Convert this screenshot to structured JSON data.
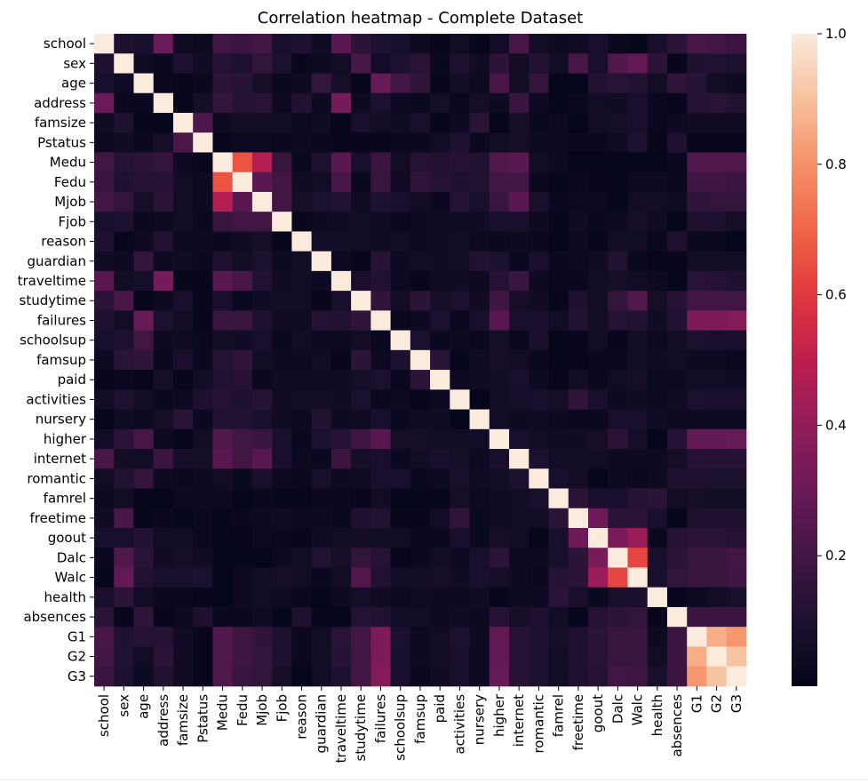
{
  "chart_data": {
    "type": "heatmap",
    "title": "Correlation heatmap - Complete Dataset",
    "xlabel": "",
    "ylabel": "",
    "labels": [
      "school",
      "sex",
      "age",
      "address",
      "famsize",
      "Pstatus",
      "Medu",
      "Fedu",
      "Mjob",
      "Fjob",
      "reason",
      "guardian",
      "traveltime",
      "studytime",
      "failures",
      "schoolsup",
      "famsup",
      "paid",
      "activities",
      "nursery",
      "higher",
      "internet",
      "romantic",
      "famrel",
      "freetime",
      "goout",
      "Dalc",
      "Walc",
      "health",
      "absences",
      "G1",
      "G2",
      "G3"
    ],
    "colorbar": {
      "ticks": [
        "0.2",
        "0.4",
        "0.6",
        "0.8",
        "1.0"
      ],
      "tick_values": [
        0.2,
        0.4,
        0.6,
        0.8,
        1.0
      ],
      "min": 0.0,
      "max": 1.0
    },
    "colormap": "rocket",
    "values": [
      [
        1.0,
        0.1,
        0.08,
        0.3,
        0.05,
        0.04,
        0.2,
        0.18,
        0.2,
        0.08,
        0.1,
        0.05,
        0.26,
        0.14,
        0.1,
        0.08,
        0.04,
        0.02,
        0.06,
        0.01,
        0.06,
        0.22,
        0.06,
        0.04,
        0.05,
        0.08,
        0.03,
        0.01,
        0.08,
        0.14,
        0.22,
        0.2,
        0.18
      ],
      [
        0.1,
        1.0,
        0.05,
        0.03,
        0.1,
        0.05,
        0.12,
        0.1,
        0.16,
        0.09,
        0.02,
        0.04,
        0.06,
        0.22,
        0.06,
        0.1,
        0.13,
        0.03,
        0.1,
        0.05,
        0.14,
        0.06,
        0.11,
        0.06,
        0.22,
        0.08,
        0.24,
        0.28,
        0.14,
        0.02,
        0.1,
        0.11,
        0.09
      ],
      [
        0.08,
        0.05,
        1.0,
        0.03,
        0.02,
        0.03,
        0.14,
        0.12,
        0.07,
        0.03,
        0.04,
        0.16,
        0.07,
        0.01,
        0.29,
        0.2,
        0.15,
        0.02,
        0.06,
        0.04,
        0.22,
        0.06,
        0.16,
        0.01,
        0.01,
        0.11,
        0.13,
        0.11,
        0.06,
        0.15,
        0.12,
        0.06,
        0.04
      ],
      [
        0.3,
        0.03,
        0.03,
        1.0,
        0.01,
        0.07,
        0.16,
        0.12,
        0.13,
        0.04,
        0.11,
        0.04,
        0.33,
        0.04,
        0.09,
        0.04,
        0.03,
        0.07,
        0.03,
        0.07,
        0.04,
        0.18,
        0.04,
        0.01,
        0.03,
        0.06,
        0.05,
        0.08,
        0.03,
        0.02,
        0.12,
        0.13,
        0.11
      ],
      [
        0.05,
        0.1,
        0.02,
        0.01,
        1.0,
        0.23,
        0.04,
        0.06,
        0.06,
        0.06,
        0.04,
        0.05,
        0.01,
        0.08,
        0.06,
        0.05,
        0.08,
        0.02,
        0.04,
        0.13,
        0.01,
        0.07,
        0.03,
        0.04,
        0.01,
        0.06,
        0.07,
        0.08,
        0.03,
        0.04,
        0.05,
        0.05,
        0.05
      ],
      [
        0.04,
        0.05,
        0.03,
        0.07,
        0.23,
        1.0,
        0.02,
        0.04,
        0.04,
        0.03,
        0.04,
        0.03,
        0.02,
        0.02,
        0.02,
        0.03,
        0.03,
        0.06,
        0.1,
        0.03,
        0.06,
        0.07,
        0.04,
        0.04,
        0.03,
        0.03,
        0.05,
        0.09,
        0.02,
        0.1,
        0.02,
        0.02,
        0.02
      ],
      [
        0.2,
        0.12,
        0.14,
        0.16,
        0.04,
        0.02,
        1.0,
        0.66,
        0.48,
        0.17,
        0.03,
        0.1,
        0.26,
        0.08,
        0.18,
        0.06,
        0.12,
        0.11,
        0.12,
        0.11,
        0.24,
        0.26,
        0.06,
        0.04,
        0.01,
        0.01,
        0.01,
        0.01,
        0.01,
        0.03,
        0.24,
        0.24,
        0.24
      ],
      [
        0.18,
        0.1,
        0.12,
        0.12,
        0.06,
        0.04,
        0.66,
        1.0,
        0.26,
        0.2,
        0.05,
        0.06,
        0.22,
        0.03,
        0.17,
        0.05,
        0.15,
        0.12,
        0.1,
        0.11,
        0.2,
        0.2,
        0.03,
        0.01,
        0.03,
        0.02,
        0.01,
        0.04,
        0.04,
        0.03,
        0.19,
        0.19,
        0.18
      ],
      [
        0.2,
        0.16,
        0.07,
        0.13,
        0.06,
        0.04,
        0.48,
        0.26,
        1.0,
        0.2,
        0.07,
        0.09,
        0.11,
        0.05,
        0.1,
        0.08,
        0.06,
        0.03,
        0.12,
        0.08,
        0.18,
        0.26,
        0.08,
        0.03,
        0.04,
        0.04,
        0.01,
        0.06,
        0.06,
        0.05,
        0.15,
        0.16,
        0.16
      ],
      [
        0.08,
        0.09,
        0.03,
        0.04,
        0.06,
        0.03,
        0.17,
        0.2,
        0.2,
        1.0,
        0.02,
        0.04,
        0.05,
        0.06,
        0.05,
        0.03,
        0.04,
        0.05,
        0.05,
        0.05,
        0.08,
        0.08,
        0.04,
        0.01,
        0.05,
        0.03,
        0.04,
        0.07,
        0.05,
        0.01,
        0.1,
        0.09,
        0.07
      ],
      [
        0.1,
        0.02,
        0.04,
        0.11,
        0.04,
        0.04,
        0.03,
        0.05,
        0.07,
        0.02,
        1.0,
        0.06,
        0.06,
        0.06,
        0.05,
        0.06,
        0.04,
        0.05,
        0.06,
        0.04,
        0.03,
        0.04,
        0.03,
        0.01,
        0.04,
        0.02,
        0.06,
        0.06,
        0.03,
        0.1,
        0.03,
        0.03,
        0.01
      ],
      [
        0.05,
        0.04,
        0.16,
        0.04,
        0.05,
        0.03,
        0.1,
        0.06,
        0.09,
        0.04,
        0.06,
        1.0,
        0.04,
        0.02,
        0.12,
        0.04,
        0.06,
        0.05,
        0.06,
        0.11,
        0.09,
        0.03,
        0.08,
        0.03,
        0.04,
        0.05,
        0.11,
        0.03,
        0.01,
        0.02,
        0.06,
        0.06,
        0.06
      ],
      [
        0.26,
        0.06,
        0.07,
        0.33,
        0.01,
        0.02,
        0.26,
        0.22,
        0.11,
        0.05,
        0.06,
        0.04,
        1.0,
        0.08,
        0.11,
        0.04,
        0.02,
        0.05,
        0.05,
        0.04,
        0.12,
        0.18,
        0.04,
        0.03,
        0.03,
        0.06,
        0.07,
        0.06,
        0.04,
        0.01,
        0.13,
        0.12,
        0.1
      ],
      [
        0.14,
        0.22,
        0.01,
        0.04,
        0.08,
        0.02,
        0.08,
        0.03,
        0.05,
        0.06,
        0.06,
        0.02,
        0.08,
        1.0,
        0.15,
        0.06,
        0.14,
        0.07,
        0.09,
        0.05,
        0.19,
        0.07,
        0.05,
        0.02,
        0.1,
        0.06,
        0.16,
        0.24,
        0.07,
        0.12,
        0.2,
        0.2,
        0.2
      ],
      [
        0.1,
        0.06,
        0.29,
        0.09,
        0.06,
        0.02,
        0.18,
        0.17,
        0.1,
        0.05,
        0.05,
        0.12,
        0.11,
        0.15,
        1.0,
        0.03,
        0.04,
        0.09,
        0.03,
        0.08,
        0.26,
        0.08,
        0.08,
        0.06,
        0.11,
        0.06,
        0.12,
        0.11,
        0.05,
        0.11,
        0.35,
        0.35,
        0.37
      ],
      [
        0.08,
        0.1,
        0.2,
        0.04,
        0.05,
        0.03,
        0.06,
        0.05,
        0.08,
        0.03,
        0.06,
        0.04,
        0.04,
        0.06,
        0.03,
        1.0,
        0.09,
        0.03,
        0.04,
        0.03,
        0.07,
        0.03,
        0.08,
        0.01,
        0.02,
        0.06,
        0.02,
        0.06,
        0.04,
        0.06,
        0.09,
        0.08,
        0.08
      ],
      [
        0.04,
        0.13,
        0.15,
        0.03,
        0.08,
        0.03,
        0.12,
        0.15,
        0.06,
        0.04,
        0.04,
        0.06,
        0.02,
        0.14,
        0.04,
        0.09,
        1.0,
        0.13,
        0.01,
        0.05,
        0.07,
        0.06,
        0.03,
        0.01,
        0.02,
        0.03,
        0.03,
        0.06,
        0.05,
        0.06,
        0.04,
        0.04,
        0.03
      ],
      [
        0.02,
        0.03,
        0.02,
        0.07,
        0.02,
        0.06,
        0.11,
        0.12,
        0.03,
        0.05,
        0.05,
        0.05,
        0.05,
        0.07,
        0.09,
        0.03,
        0.13,
        1.0,
        0.04,
        0.05,
        0.06,
        0.08,
        0.04,
        0.02,
        0.06,
        0.03,
        0.06,
        0.07,
        0.04,
        0.04,
        0.06,
        0.06,
        0.05
      ],
      [
        0.06,
        0.1,
        0.06,
        0.03,
        0.04,
        0.1,
        0.12,
        0.1,
        0.12,
        0.05,
        0.06,
        0.06,
        0.05,
        0.09,
        0.03,
        0.04,
        0.01,
        0.04,
        1.0,
        0.01,
        0.06,
        0.07,
        0.08,
        0.07,
        0.15,
        0.08,
        0.04,
        0.05,
        0.04,
        0.05,
        0.09,
        0.08,
        0.08
      ],
      [
        0.01,
        0.05,
        0.04,
        0.07,
        0.13,
        0.03,
        0.11,
        0.11,
        0.08,
        0.05,
        0.04,
        0.11,
        0.04,
        0.05,
        0.08,
        0.03,
        0.05,
        0.05,
        0.01,
        1.0,
        0.06,
        0.04,
        0.05,
        0.04,
        0.03,
        0.03,
        0.08,
        0.08,
        0.05,
        0.04,
        0.04,
        0.04,
        0.04
      ],
      [
        0.06,
        0.14,
        0.22,
        0.04,
        0.01,
        0.06,
        0.24,
        0.2,
        0.18,
        0.08,
        0.03,
        0.09,
        0.12,
        0.19,
        0.26,
        0.07,
        0.07,
        0.06,
        0.06,
        0.06,
        1.0,
        0.08,
        0.06,
        0.05,
        0.05,
        0.07,
        0.14,
        0.07,
        0.01,
        0.12,
        0.28,
        0.28,
        0.29
      ],
      [
        0.22,
        0.06,
        0.06,
        0.18,
        0.07,
        0.07,
        0.26,
        0.2,
        0.26,
        0.08,
        0.04,
        0.03,
        0.18,
        0.07,
        0.08,
        0.03,
        0.06,
        0.08,
        0.07,
        0.04,
        0.08,
        1.0,
        0.09,
        0.06,
        0.06,
        0.06,
        0.04,
        0.04,
        0.04,
        0.07,
        0.12,
        0.12,
        0.12
      ],
      [
        0.06,
        0.11,
        0.16,
        0.04,
        0.03,
        0.04,
        0.06,
        0.03,
        0.08,
        0.04,
        0.03,
        0.08,
        0.04,
        0.05,
        0.08,
        0.08,
        0.03,
        0.04,
        0.08,
        0.05,
        0.06,
        0.09,
        1.0,
        0.08,
        0.06,
        0.01,
        0.04,
        0.03,
        0.04,
        0.1,
        0.1,
        0.09,
        0.09
      ],
      [
        0.04,
        0.06,
        0.01,
        0.01,
        0.04,
        0.04,
        0.04,
        0.01,
        0.03,
        0.01,
        0.01,
        0.03,
        0.03,
        0.02,
        0.06,
        0.01,
        0.01,
        0.02,
        0.07,
        0.04,
        0.05,
        0.06,
        0.08,
        1.0,
        0.14,
        0.08,
        0.08,
        0.12,
        0.13,
        0.06,
        0.07,
        0.06,
        0.06
      ],
      [
        0.05,
        0.22,
        0.01,
        0.03,
        0.01,
        0.03,
        0.01,
        0.03,
        0.04,
        0.05,
        0.04,
        0.04,
        0.03,
        0.1,
        0.11,
        0.02,
        0.02,
        0.06,
        0.15,
        0.03,
        0.05,
        0.06,
        0.06,
        0.14,
        1.0,
        0.31,
        0.14,
        0.14,
        0.08,
        0.01,
        0.1,
        0.1,
        0.1
      ],
      [
        0.08,
        0.08,
        0.11,
        0.06,
        0.06,
        0.03,
        0.01,
        0.02,
        0.04,
        0.03,
        0.02,
        0.05,
        0.06,
        0.06,
        0.06,
        0.06,
        0.03,
        0.03,
        0.08,
        0.03,
        0.07,
        0.06,
        0.01,
        0.08,
        0.31,
        1.0,
        0.34,
        0.42,
        0.03,
        0.12,
        0.13,
        0.13,
        0.12
      ],
      [
        0.03,
        0.24,
        0.13,
        0.05,
        0.07,
        0.05,
        0.01,
        0.01,
        0.01,
        0.04,
        0.06,
        0.11,
        0.07,
        0.16,
        0.12,
        0.02,
        0.03,
        0.06,
        0.04,
        0.08,
        0.14,
        0.04,
        0.04,
        0.08,
        0.14,
        0.34,
        1.0,
        0.63,
        0.08,
        0.14,
        0.17,
        0.17,
        0.2
      ],
      [
        0.01,
        0.28,
        0.11,
        0.08,
        0.08,
        0.09,
        0.01,
        0.04,
        0.06,
        0.07,
        0.06,
        0.03,
        0.06,
        0.24,
        0.11,
        0.06,
        0.06,
        0.07,
        0.05,
        0.08,
        0.07,
        0.04,
        0.03,
        0.12,
        0.14,
        0.42,
        0.63,
        1.0,
        0.08,
        0.16,
        0.17,
        0.17,
        0.19
      ],
      [
        0.08,
        0.14,
        0.06,
        0.03,
        0.03,
        0.02,
        0.01,
        0.04,
        0.06,
        0.05,
        0.03,
        0.01,
        0.04,
        0.07,
        0.05,
        0.04,
        0.05,
        0.04,
        0.04,
        0.05,
        0.01,
        0.04,
        0.04,
        0.13,
        0.08,
        0.03,
        0.08,
        0.08,
        1.0,
        0.02,
        0.04,
        0.06,
        0.08
      ],
      [
        0.14,
        0.02,
        0.15,
        0.02,
        0.04,
        0.1,
        0.03,
        0.03,
        0.05,
        0.01,
        0.1,
        0.02,
        0.01,
        0.12,
        0.11,
        0.06,
        0.06,
        0.04,
        0.05,
        0.04,
        0.12,
        0.07,
        0.1,
        0.06,
        0.01,
        0.12,
        0.14,
        0.16,
        0.02,
        1.0,
        0.18,
        0.18,
        0.18
      ],
      [
        0.22,
        0.1,
        0.12,
        0.12,
        0.05,
        0.02,
        0.24,
        0.19,
        0.15,
        0.1,
        0.03,
        0.06,
        0.13,
        0.2,
        0.35,
        0.09,
        0.04,
        0.06,
        0.09,
        0.04,
        0.28,
        0.12,
        0.1,
        0.07,
        0.1,
        0.13,
        0.17,
        0.17,
        0.04,
        0.18,
        1.0,
        0.86,
        0.81
      ],
      [
        0.2,
        0.11,
        0.06,
        0.13,
        0.05,
        0.02,
        0.24,
        0.19,
        0.16,
        0.09,
        0.03,
        0.06,
        0.12,
        0.2,
        0.35,
        0.08,
        0.04,
        0.06,
        0.08,
        0.04,
        0.28,
        0.12,
        0.09,
        0.06,
        0.1,
        0.13,
        0.17,
        0.17,
        0.06,
        0.18,
        0.86,
        1.0,
        0.91
      ],
      [
        0.18,
        0.09,
        0.04,
        0.11,
        0.05,
        0.02,
        0.24,
        0.18,
        0.16,
        0.07,
        0.01,
        0.06,
        0.1,
        0.2,
        0.37,
        0.08,
        0.03,
        0.05,
        0.08,
        0.04,
        0.29,
        0.12,
        0.09,
        0.06,
        0.1,
        0.12,
        0.2,
        0.19,
        0.08,
        0.18,
        0.81,
        0.91,
        1.0
      ]
    ]
  }
}
